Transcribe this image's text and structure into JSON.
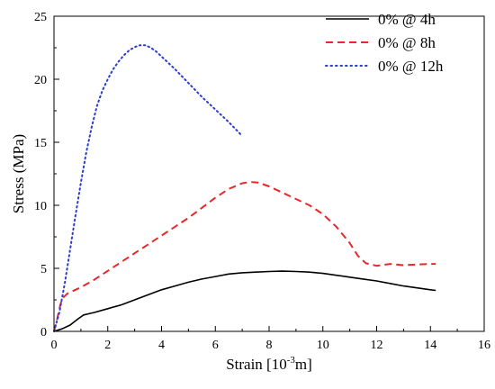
{
  "chart_data": {
    "type": "line",
    "xlabel": "Strain [10",
    "xlabel_sup": "-3",
    "xlabel_end": "m]",
    "ylabel": "Stress (MPa)",
    "xlim": [
      0,
      16
    ],
    "ylim": [
      0,
      25
    ],
    "xticks": [
      "0",
      "2",
      "4",
      "6",
      "8",
      "10",
      "12",
      "14",
      "16"
    ],
    "yticks": [
      "0",
      "5",
      "10",
      "15",
      "20",
      "25"
    ],
    "grid": false,
    "legend_position": "top-right",
    "series": [
      {
        "name": "0% @ 4h",
        "color": "#000000",
        "style": "solid",
        "points": [
          [
            0,
            0
          ],
          [
            0.3,
            0.2
          ],
          [
            0.6,
            0.5
          ],
          [
            0.9,
            1.0
          ],
          [
            1.1,
            1.3
          ],
          [
            1.3,
            1.4
          ],
          [
            1.5,
            1.5
          ],
          [
            2,
            1.8
          ],
          [
            2.5,
            2.1
          ],
          [
            3,
            2.5
          ],
          [
            3.5,
            2.9
          ],
          [
            4,
            3.3
          ],
          [
            4.5,
            3.6
          ],
          [
            5,
            3.9
          ],
          [
            5.5,
            4.15
          ],
          [
            6,
            4.35
          ],
          [
            6.5,
            4.55
          ],
          [
            7,
            4.65
          ],
          [
            7.5,
            4.7
          ],
          [
            8,
            4.75
          ],
          [
            8.5,
            4.78
          ],
          [
            9,
            4.75
          ],
          [
            9.5,
            4.7
          ],
          [
            10,
            4.6
          ],
          [
            10.5,
            4.45
          ],
          [
            11,
            4.3
          ],
          [
            11.5,
            4.15
          ],
          [
            12,
            4.0
          ],
          [
            12.5,
            3.8
          ],
          [
            13,
            3.6
          ],
          [
            13.5,
            3.45
          ],
          [
            14,
            3.3
          ],
          [
            14.2,
            3.25
          ]
        ]
      },
      {
        "name": "0% @ 8h",
        "color": "#e8282a",
        "style": "dashed",
        "points": [
          [
            0,
            0
          ],
          [
            0.1,
            0.8
          ],
          [
            0.2,
            1.8
          ],
          [
            0.3,
            2.6
          ],
          [
            0.5,
            3.0
          ],
          [
            1,
            3.5
          ],
          [
            1.5,
            4.1
          ],
          [
            2,
            4.8
          ],
          [
            2.5,
            5.5
          ],
          [
            3,
            6.2
          ],
          [
            3.5,
            6.9
          ],
          [
            4,
            7.6
          ],
          [
            4.5,
            8.3
          ],
          [
            5,
            9.0
          ],
          [
            5.5,
            9.8
          ],
          [
            6,
            10.6
          ],
          [
            6.5,
            11.3
          ],
          [
            7,
            11.75
          ],
          [
            7.3,
            11.85
          ],
          [
            7.6,
            11.8
          ],
          [
            8,
            11.5
          ],
          [
            8.5,
            11.0
          ],
          [
            9,
            10.5
          ],
          [
            9.5,
            10.0
          ],
          [
            10,
            9.3
          ],
          [
            10.5,
            8.3
          ],
          [
            11,
            7.0
          ],
          [
            11.3,
            6.0
          ],
          [
            11.6,
            5.4
          ],
          [
            12,
            5.2
          ],
          [
            12.5,
            5.35
          ],
          [
            13,
            5.25
          ],
          [
            13.5,
            5.3
          ],
          [
            14,
            5.35
          ],
          [
            14.2,
            5.35
          ]
        ]
      },
      {
        "name": "0% @ 12h",
        "color": "#2a3bd6",
        "style": "dotted",
        "points": [
          [
            0,
            0
          ],
          [
            0.2,
            1.5
          ],
          [
            0.4,
            3.8
          ],
          [
            0.6,
            6.5
          ],
          [
            0.8,
            9.2
          ],
          [
            1.0,
            11.8
          ],
          [
            1.2,
            14.2
          ],
          [
            1.4,
            16.2
          ],
          [
            1.6,
            17.9
          ],
          [
            1.8,
            19.1
          ],
          [
            2.0,
            20.0
          ],
          [
            2.2,
            20.8
          ],
          [
            2.4,
            21.4
          ],
          [
            2.6,
            21.9
          ],
          [
            2.8,
            22.3
          ],
          [
            3.0,
            22.55
          ],
          [
            3.2,
            22.7
          ],
          [
            3.4,
            22.7
          ],
          [
            3.6,
            22.5
          ],
          [
            3.8,
            22.2
          ],
          [
            4.0,
            21.8
          ],
          [
            4.5,
            20.8
          ],
          [
            5.0,
            19.7
          ],
          [
            5.5,
            18.6
          ],
          [
            6.0,
            17.6
          ],
          [
            6.5,
            16.6
          ],
          [
            7.0,
            15.5
          ]
        ]
      }
    ]
  }
}
